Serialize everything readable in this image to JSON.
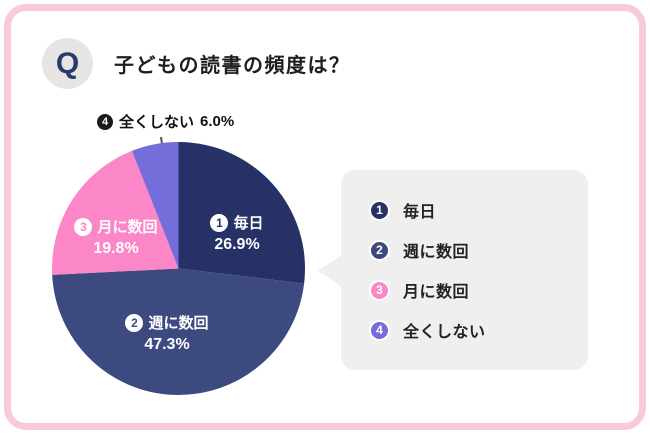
{
  "header": {
    "q_badge": "Q",
    "title": "子どもの読書の頻度は？"
  },
  "chart_data": {
    "type": "pie",
    "title": "子どもの読書の頻度は？",
    "categories": [
      "毎日",
      "週に数回",
      "月に数回",
      "全くしない"
    ],
    "values": [
      26.9,
      47.3,
      19.8,
      6.0
    ],
    "value_labels": [
      "26.9%",
      "47.3%",
      "19.8%",
      "6.0%"
    ],
    "colors": [
      "#263165",
      "#3c4a80",
      "#fb87c8",
      "#746dda"
    ],
    "start_angle_deg": 0,
    "direction": "clockwise",
    "legend_position": "right",
    "labels_inside": true
  },
  "pie_labels": {
    "items": [
      {
        "num": "1",
        "label": "毎日",
        "pct": "26.9%"
      },
      {
        "num": "2",
        "label": "週に数回",
        "pct": "47.3%"
      },
      {
        "num": "3",
        "label": "月に数回",
        "pct": "19.8%"
      },
      {
        "num": "4",
        "label": "全くしない",
        "pct": "6.0%"
      }
    ]
  },
  "legend": {
    "items": [
      {
        "num": "1",
        "label": "毎日",
        "color": "#263165"
      },
      {
        "num": "2",
        "label": "週に数回",
        "color": "#3c4a80"
      },
      {
        "num": "3",
        "label": "月に数回",
        "color": "#fb87c8"
      },
      {
        "num": "4",
        "label": "全くしない",
        "color": "#746dda"
      }
    ]
  },
  "theme": {
    "card_border": "#f9cbd9",
    "card_bg": "#ffffff",
    "legend_bg": "#efeff0",
    "q_badge_bg": "#e7e5e4",
    "q_badge_color": "#2b3a6e",
    "outside_badge_color": "#1a1a1a",
    "text_color": "#1e1e1e"
  }
}
